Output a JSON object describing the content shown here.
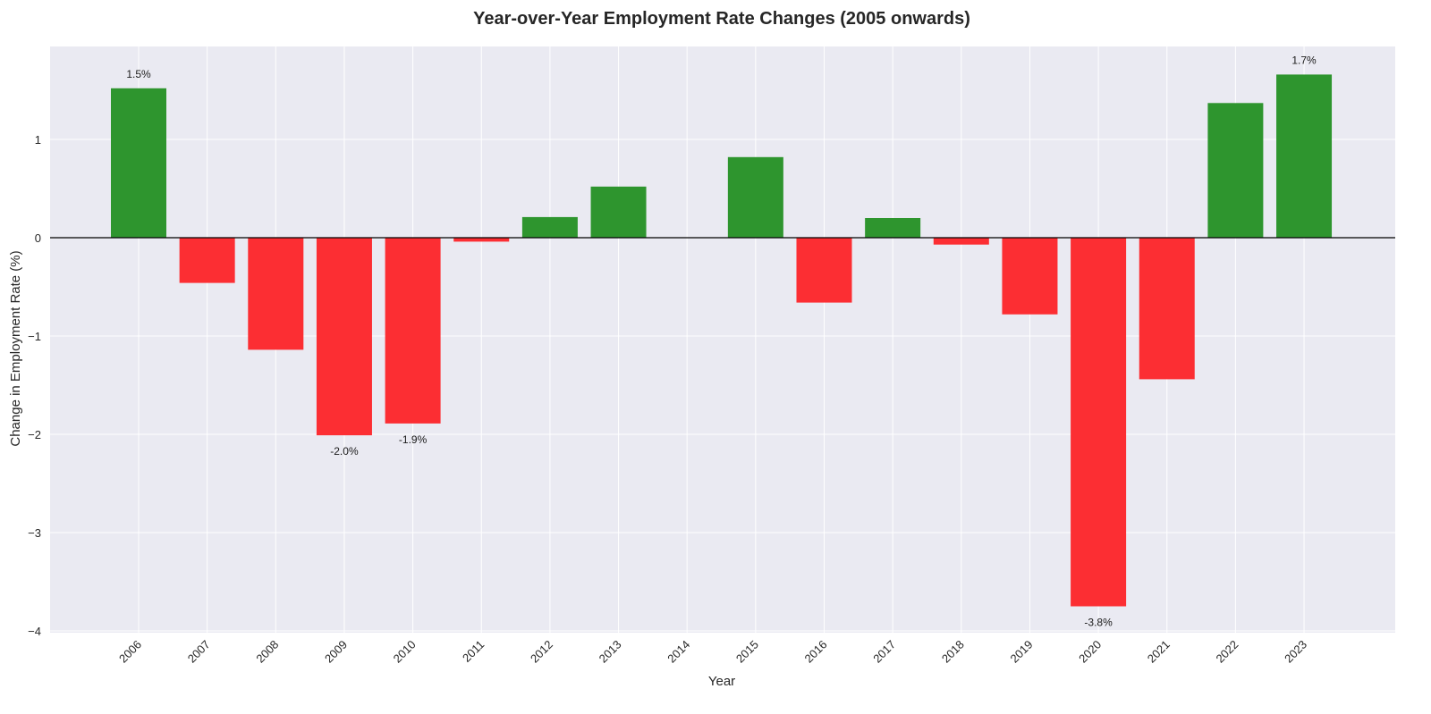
{
  "chart_data": {
    "type": "bar",
    "title": "Year-over-Year Employment Rate Changes (2005 onwards)",
    "xlabel": "Year",
    "ylabel": "Change in Employment Rate (%)",
    "categories": [
      "2006",
      "2007",
      "2008",
      "2009",
      "2010",
      "2011",
      "2012",
      "2013",
      "2014",
      "2015",
      "2016",
      "2017",
      "2018",
      "2019",
      "2020",
      "2021",
      "2022",
      "2023"
    ],
    "values": [
      1.52,
      -0.46,
      -1.14,
      -2.01,
      -1.89,
      -0.04,
      0.21,
      0.52,
      0.0,
      0.82,
      -0.66,
      0.2,
      -0.07,
      -0.78,
      -3.75,
      -1.44,
      1.37,
      1.66
    ],
    "data_labels": [
      {
        "category": "2006",
        "text": "1.5%"
      },
      {
        "category": "2009",
        "text": "-2.0%"
      },
      {
        "category": "2010",
        "text": "-1.9%"
      },
      {
        "category": "2020",
        "text": "-3.8%"
      },
      {
        "category": "2023",
        "text": "1.7%"
      }
    ],
    "ylim": [
      -4.0,
      1.9
    ],
    "yticks": [
      1,
      0,
      -1,
      -2,
      -3,
      -4
    ],
    "ytick_labels": [
      "1",
      "0",
      "−1",
      "−2",
      "−3",
      "−4"
    ],
    "grid": true,
    "colors": {
      "positive": "#2e952e",
      "negative": "#fc2e33",
      "background": "#eaeaf2",
      "zero_line": "#000000",
      "grid": "#ffffff"
    }
  }
}
